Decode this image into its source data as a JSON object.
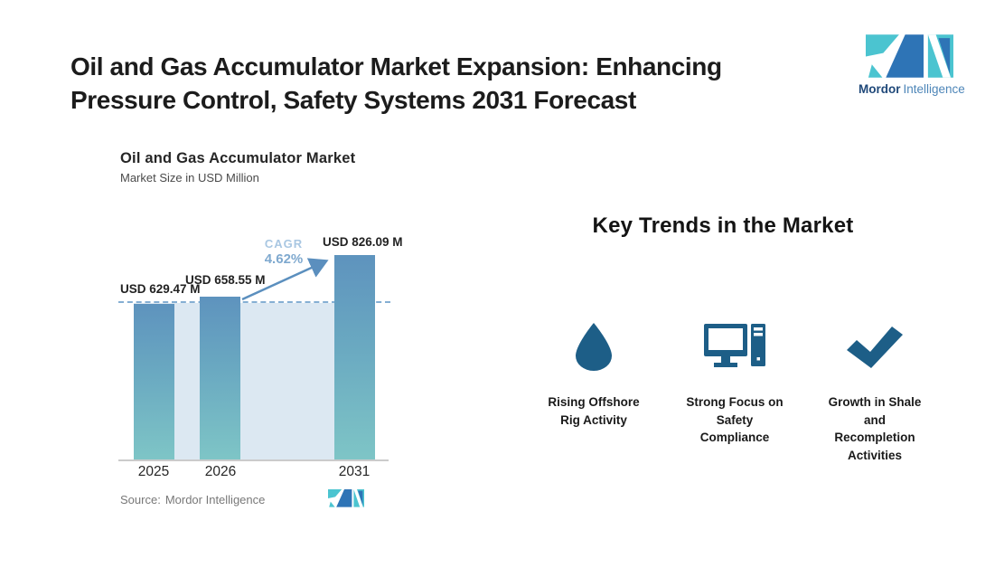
{
  "page": {
    "title_line1": "Oil and Gas Accumulator Market Expansion: Enhancing",
    "title_line2": "Pressure Control, Safety Systems 2031 Forecast"
  },
  "brand": {
    "name_bold": "Mordor",
    "name_light": "Intelligence",
    "teal": "#4bc4d0",
    "blue": "#2e74b6"
  },
  "chart": {
    "title": "Oil and Gas Accumulator Market",
    "subtitle": "Market Size in USD Million",
    "source_label": "Source:",
    "source_value": "Mordor Intelligence",
    "cagr_label": "CAGR",
    "cagr_value": "4.62%"
  },
  "chart_data": {
    "type": "bar",
    "title": "Oil and Gas Accumulator Market",
    "subtitle": "Market Size in USD Million",
    "xlabel": "",
    "ylabel": "Market Size in USD Million",
    "categories": [
      "2025",
      "2026",
      "2031"
    ],
    "values": [
      629.47,
      658.55,
      826.09
    ],
    "value_labels": [
      "USD 629.47 M",
      "USD 658.55 M",
      "USD 826.09 M"
    ],
    "cagr_percent": 4.62,
    "baseline_reference_value": 629.47,
    "ylim": [
      0,
      900
    ],
    "grid": false,
    "legend": false,
    "bar_color_top": "#5e93be",
    "bar_color_bottom": "#7ec5c6",
    "band_color": "#dce8f2",
    "dashed_line_color": "#85afd3",
    "arrow_color": "#5b8fbe"
  },
  "trends": {
    "heading": "Key Trends in the Market",
    "icon_color": "#1d5e87",
    "items": [
      {
        "icon": "droplet-icon",
        "label": "Rising Offshore Rig Activity",
        "lines": [
          "Rising Offshore",
          "Rig Activity",
          "",
          ""
        ]
      },
      {
        "icon": "computer-icon",
        "label": "Strong Focus on Safety Compliance",
        "lines": [
          "Strong Focus on",
          "Safety",
          "Compliance",
          ""
        ]
      },
      {
        "icon": "checkmark-icon",
        "label": "Growth in Shale and Recompletion Activities",
        "lines": [
          "Growth in Shale",
          "and",
          "Recompletion",
          "Activities"
        ]
      }
    ]
  }
}
